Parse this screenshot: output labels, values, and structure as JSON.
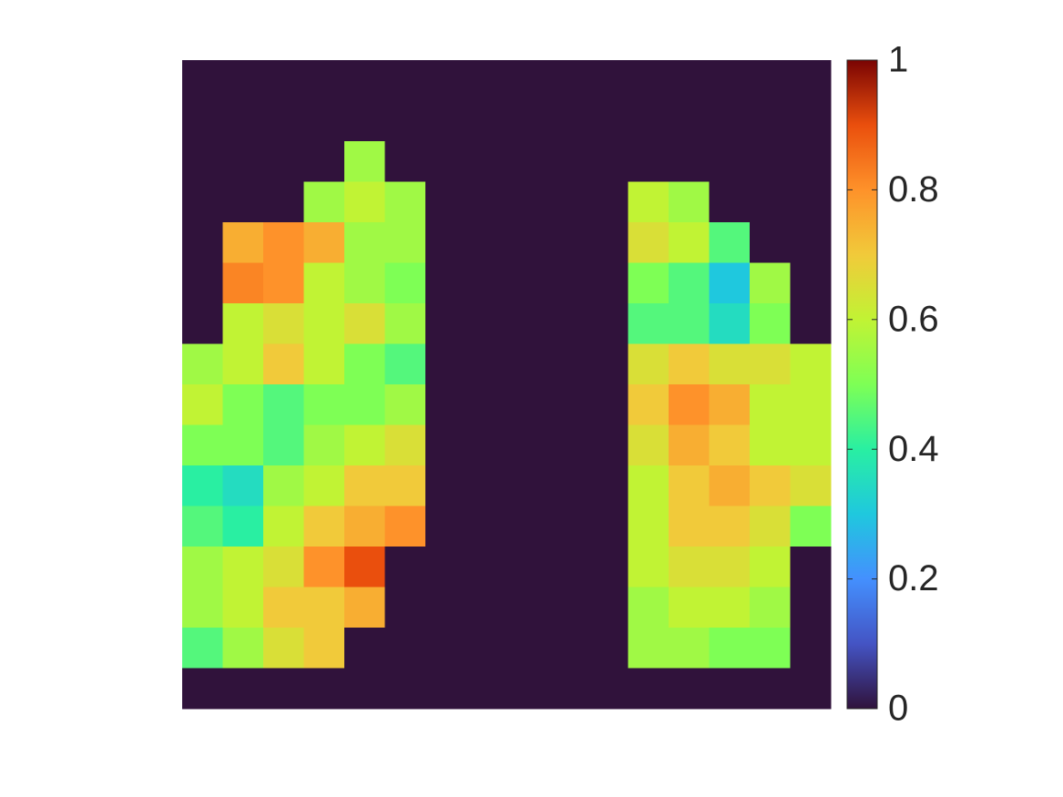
{
  "chart_data": {
    "type": "heatmap",
    "clim": [
      0,
      1
    ],
    "cticks": [
      0,
      0.2,
      0.4,
      0.6,
      0.8,
      1
    ],
    "colormap": [
      "#30123b",
      "#4454c4",
      "#4490fe",
      "#1fc8de",
      "#29efa2",
      "#7eff55",
      "#c1f334",
      "#f1ca3a",
      "#fe922a",
      "#ea4f0d",
      "#7a0403"
    ],
    "z": [
      [
        0,
        0,
        0,
        0,
        0,
        0,
        0,
        0,
        0,
        0,
        0,
        0,
        0,
        0,
        0,
        0
      ],
      [
        0,
        0,
        0,
        0,
        0,
        0,
        0,
        0,
        0,
        0,
        0,
        0,
        0,
        0,
        0,
        0
      ],
      [
        0,
        0,
        0,
        0,
        0.55,
        0,
        0,
        0,
        0,
        0,
        0,
        0,
        0,
        0,
        0,
        0
      ],
      [
        0,
        0,
        0,
        0.55,
        0.6,
        0.55,
        0,
        0,
        0,
        0,
        0,
        0.6,
        0.55,
        0,
        0,
        0
      ],
      [
        0,
        0.75,
        0.8,
        0.75,
        0.55,
        0.55,
        0,
        0,
        0,
        0,
        0,
        0.65,
        0.6,
        0.45,
        0,
        0
      ],
      [
        0,
        0.82,
        0.8,
        0.6,
        0.55,
        0.5,
        0,
        0,
        0,
        0,
        0,
        0.5,
        0.45,
        0.3,
        0.55,
        0
      ],
      [
        0,
        0.6,
        0.65,
        0.6,
        0.65,
        0.55,
        0,
        0,
        0,
        0,
        0,
        0.45,
        0.45,
        0.35,
        0.5,
        0
      ],
      [
        0.55,
        0.6,
        0.7,
        0.6,
        0.5,
        0.45,
        0,
        0,
        0,
        0,
        0,
        0.65,
        0.7,
        0.65,
        0.65,
        0.6
      ],
      [
        0.6,
        0.5,
        0.45,
        0.5,
        0.5,
        0.55,
        0,
        0,
        0,
        0,
        0,
        0.7,
        0.8,
        0.75,
        0.6,
        0.6
      ],
      [
        0.5,
        0.5,
        0.45,
        0.55,
        0.6,
        0.65,
        0,
        0,
        0,
        0,
        0,
        0.65,
        0.75,
        0.7,
        0.6,
        0.6
      ],
      [
        0.4,
        0.35,
        0.55,
        0.6,
        0.7,
        0.7,
        0,
        0,
        0,
        0,
        0,
        0.6,
        0.7,
        0.75,
        0.7,
        0.65
      ],
      [
        0.45,
        0.4,
        0.6,
        0.7,
        0.75,
        0.8,
        0,
        0,
        0,
        0,
        0,
        0.6,
        0.7,
        0.7,
        0.65,
        0.5
      ],
      [
        0.55,
        0.6,
        0.65,
        0.8,
        0.9,
        0,
        0,
        0,
        0,
        0,
        0,
        0.6,
        0.65,
        0.65,
        0.6,
        0
      ],
      [
        0.55,
        0.6,
        0.7,
        0.7,
        0.75,
        0,
        0,
        0,
        0,
        0,
        0,
        0.55,
        0.6,
        0.6,
        0.55,
        0
      ],
      [
        0.45,
        0.55,
        0.65,
        0.7,
        0,
        0,
        0,
        0,
        0,
        0,
        0,
        0.55,
        0.55,
        0.5,
        0.5,
        0
      ],
      [
        0,
        0,
        0,
        0,
        0,
        0,
        0,
        0,
        0,
        0,
        0,
        0,
        0,
        0,
        0,
        0
      ]
    ]
  }
}
